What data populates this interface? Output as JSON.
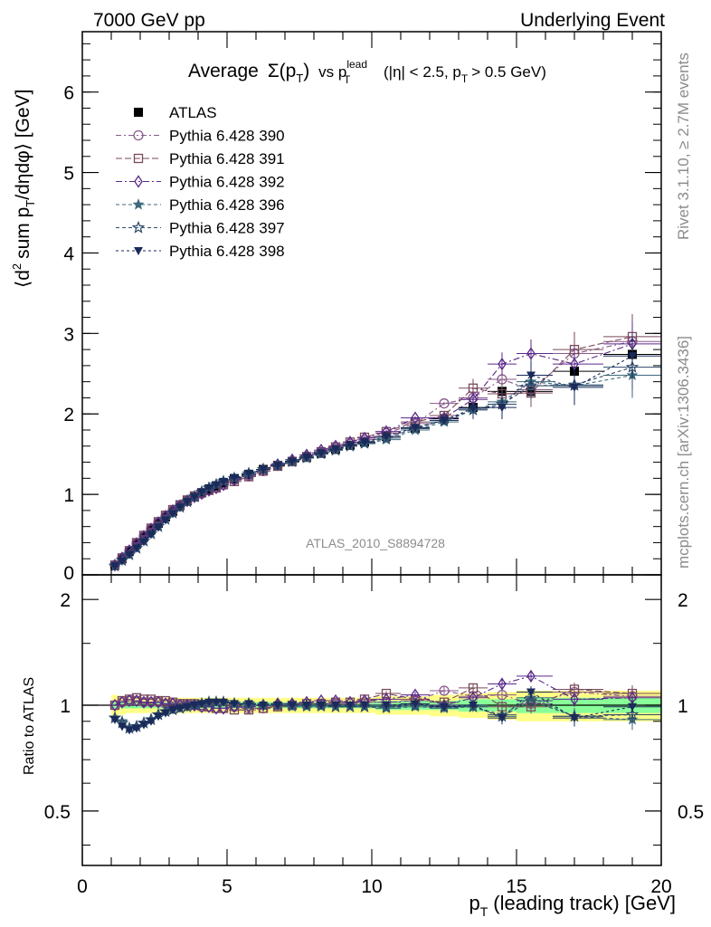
{
  "header": {
    "energy_label": "7000 GeV pp",
    "process_label": "Underlying Event"
  },
  "side_text": {
    "rivet": "Rivet 3.1.10, ≥ 2.7M events",
    "mcplots": "mcplots.cern.ch [arXiv:1306.3436]"
  },
  "colors": {
    "atlas": "#000000",
    "p390": "#8a5a8c",
    "p391": "#7a4a5c",
    "p392": "#5a2a8a",
    "p396": "#3e6a7c",
    "p397": "#2e4a6a",
    "p398": "#1a2a5a",
    "band_outer": "#ffff88",
    "band_inner": "#88ff99"
  },
  "chart_data": [
    {
      "type": "line",
      "title": "Average Σ(p_T) vs p_T^lead (|η| < 2.5, p_T > 0.5 GeV)",
      "title_parts": {
        "main": "Average",
        "sigma": "Σ(p",
        "sub_T": "T",
        "close": ")",
        "vs": "vs p",
        "sup_lead": "lead",
        "cut1": "(|η| < 2.5, p",
        "cut2": "> 0.5 GeV)"
      },
      "ylabel": "⟨d² sum p_T/dηdφ⟩ [GeV]",
      "ylabel_parts": {
        "a": "⟨d",
        "sup2": "2",
        "b": "sum p",
        "subT": "T",
        "c": "/dηdφ⟩ [GeV]"
      },
      "watermark": "ATLAS_2010_S8894728",
      "xlim": [
        0,
        20
      ],
      "ylim": [
        0,
        6.75
      ],
      "yticks": [
        0,
        1,
        2,
        3,
        4,
        5,
        6
      ],
      "legend_position": "top-left",
      "x": [
        1.125,
        1.375,
        1.625,
        1.875,
        2.125,
        2.375,
        2.625,
        2.875,
        3.125,
        3.375,
        3.625,
        3.875,
        4.125,
        4.375,
        4.625,
        4.875,
        5.25,
        5.75,
        6.25,
        6.75,
        7.25,
        7.75,
        8.25,
        8.75,
        9.25,
        9.75,
        10.5,
        11.5,
        12.5,
        13.5,
        14.5,
        15.5,
        17.0,
        19.0
      ],
      "series": [
        {
          "name": "ATLAS",
          "key": "atlas",
          "marker": "square-filled",
          "dash": "",
          "values": [
            0.12,
            0.2,
            0.29,
            0.38,
            0.47,
            0.56,
            0.64,
            0.72,
            0.79,
            0.86,
            0.92,
            0.97,
            1.02,
            1.06,
            1.1,
            1.14,
            1.19,
            1.25,
            1.31,
            1.36,
            1.41,
            1.46,
            1.51,
            1.56,
            1.61,
            1.65,
            1.72,
            1.82,
            1.94,
            2.08,
            2.28,
            2.28,
            2.53,
            2.74
          ]
        },
        {
          "name": "Pythia 6.428 390",
          "key": "p390",
          "marker": "circle-open",
          "dash": "6,3,2,3",
          "values": [
            0.12,
            0.21,
            0.3,
            0.39,
            0.48,
            0.57,
            0.65,
            0.73,
            0.8,
            0.86,
            0.92,
            0.97,
            1.01,
            1.05,
            1.08,
            1.12,
            1.18,
            1.23,
            1.29,
            1.36,
            1.41,
            1.47,
            1.52,
            1.58,
            1.63,
            1.68,
            1.76,
            1.88,
            2.13,
            2.2,
            2.43,
            2.3,
            2.75,
            2.9
          ]
        },
        {
          "name": "Pythia 6.428 391",
          "key": "p391",
          "marker": "square-open",
          "dash": "7,3",
          "values": [
            0.12,
            0.21,
            0.3,
            0.4,
            0.49,
            0.58,
            0.66,
            0.74,
            0.81,
            0.87,
            0.93,
            0.98,
            1.02,
            1.05,
            1.08,
            1.12,
            1.16,
            1.22,
            1.29,
            1.35,
            1.41,
            1.47,
            1.53,
            1.59,
            1.65,
            1.71,
            1.78,
            1.9,
            1.98,
            2.32,
            2.25,
            2.26,
            2.8,
            2.96
          ]
        },
        {
          "name": "Pythia 6.428 392",
          "key": "p392",
          "marker": "diamond-open",
          "dash": "7,3,2,3",
          "values": [
            0.12,
            0.21,
            0.3,
            0.39,
            0.48,
            0.57,
            0.65,
            0.73,
            0.8,
            0.86,
            0.92,
            0.97,
            1.01,
            1.05,
            1.08,
            1.12,
            1.18,
            1.24,
            1.31,
            1.37,
            1.43,
            1.49,
            1.55,
            1.6,
            1.65,
            1.7,
            1.78,
            1.95,
            1.95,
            2.18,
            2.62,
            2.75,
            2.62,
            2.87
          ]
        },
        {
          "name": "Pythia 6.428 396",
          "key": "p396",
          "marker": "star-filled",
          "dash": "4,3",
          "values": [
            0.11,
            0.18,
            0.25,
            0.33,
            0.42,
            0.51,
            0.6,
            0.69,
            0.77,
            0.84,
            0.91,
            0.97,
            1.03,
            1.08,
            1.12,
            1.16,
            1.2,
            1.25,
            1.31,
            1.36,
            1.4,
            1.45,
            1.5,
            1.55,
            1.6,
            1.63,
            1.68,
            1.8,
            1.9,
            2.05,
            2.15,
            2.4,
            2.35,
            2.48
          ]
        },
        {
          "name": "Pythia 6.428 397",
          "key": "p397",
          "marker": "star-open",
          "dash": "4,3",
          "values": [
            0.11,
            0.18,
            0.25,
            0.33,
            0.42,
            0.51,
            0.6,
            0.69,
            0.77,
            0.84,
            0.91,
            0.97,
            1.03,
            1.08,
            1.12,
            1.16,
            1.2,
            1.26,
            1.31,
            1.36,
            1.41,
            1.46,
            1.51,
            1.55,
            1.6,
            1.64,
            1.7,
            1.82,
            1.92,
            2.05,
            2.12,
            2.35,
            2.36,
            2.58
          ]
        },
        {
          "name": "Pythia 6.428 398",
          "key": "p398",
          "marker": "triangle-down-filled",
          "dash": "3,3",
          "values": [
            0.11,
            0.17,
            0.25,
            0.33,
            0.41,
            0.5,
            0.59,
            0.68,
            0.76,
            0.84,
            0.91,
            0.97,
            1.03,
            1.08,
            1.12,
            1.16,
            1.21,
            1.26,
            1.31,
            1.36,
            1.41,
            1.46,
            1.51,
            1.56,
            1.61,
            1.65,
            1.72,
            1.83,
            1.92,
            2.07,
            2.08,
            2.48,
            2.33,
            2.72
          ]
        }
      ]
    },
    {
      "type": "line",
      "ylabel": "Ratio to ATLAS",
      "xlabel": "p_T (leading track) [GeV]",
      "xlabel_parts": {
        "p": "p",
        "subT": "T",
        "rest": "(leading track) [GeV]"
      },
      "xlim": [
        0,
        20
      ],
      "ylim": [
        0.35,
        2.35
      ],
      "xticks": [
        0,
        5,
        10,
        15,
        20
      ],
      "yticks": [
        0.5,
        1,
        2
      ],
      "ytick_labels": [
        "0.5",
        "1",
        "2"
      ],
      "reference": 1,
      "band_outer": [
        0.07,
        0.06,
        0.05,
        0.05,
        0.05,
        0.05,
        0.05,
        0.05,
        0.05,
        0.05,
        0.05,
        0.05,
        0.05,
        0.05,
        0.05,
        0.05,
        0.05,
        0.05,
        0.05,
        0.05,
        0.05,
        0.05,
        0.05,
        0.05,
        0.05,
        0.05,
        0.06,
        0.06,
        0.07,
        0.08,
        0.09,
        0.1,
        0.1,
        0.1
      ],
      "band_inner": [
        0.02,
        0.02,
        0.02,
        0.02,
        0.02,
        0.02,
        0.02,
        0.02,
        0.02,
        0.02,
        0.02,
        0.02,
        0.02,
        0.02,
        0.02,
        0.02,
        0.02,
        0.02,
        0.02,
        0.02,
        0.02,
        0.02,
        0.02,
        0.02,
        0.02,
        0.02,
        0.03,
        0.03,
        0.03,
        0.04,
        0.04,
        0.05,
        0.05,
        0.05
      ],
      "series": [
        {
          "name": "Pythia 6.428 390",
          "key": "p390",
          "marker": "circle-open",
          "dash": "6,3,2,3",
          "values": [
            1.0,
            1.02,
            1.03,
            1.03,
            1.02,
            1.02,
            1.02,
            1.01,
            1.01,
            1.0,
            1.0,
            1.0,
            0.99,
            0.99,
            0.98,
            0.98,
            0.99,
            0.98,
            0.98,
            1.0,
            1.0,
            1.01,
            1.01,
            1.01,
            1.01,
            1.02,
            1.02,
            1.03,
            1.1,
            1.06,
            1.07,
            1.01,
            1.09,
            1.06
          ]
        },
        {
          "name": "Pythia 6.428 391",
          "key": "p391",
          "marker": "square-open",
          "dash": "7,3",
          "values": [
            1.0,
            1.03,
            1.04,
            1.05,
            1.04,
            1.04,
            1.03,
            1.03,
            1.02,
            1.01,
            1.01,
            1.01,
            1.0,
            0.99,
            0.98,
            0.98,
            0.97,
            0.97,
            0.98,
            0.99,
            1.0,
            1.01,
            1.01,
            1.02,
            1.02,
            1.04,
            1.08,
            1.04,
            1.02,
            1.12,
            0.99,
            0.99,
            1.11,
            1.08
          ]
        },
        {
          "name": "Pythia 6.428 392",
          "key": "p392",
          "marker": "diamond-open",
          "dash": "7,3,2,3",
          "values": [
            1.0,
            1.02,
            1.03,
            1.03,
            1.02,
            1.02,
            1.02,
            1.01,
            1.01,
            1.0,
            1.0,
            1.0,
            0.99,
            0.99,
            0.98,
            0.98,
            0.99,
            0.99,
            1.0,
            1.01,
            1.01,
            1.02,
            1.03,
            1.03,
            1.02,
            1.03,
            1.04,
            1.07,
            1.0,
            1.05,
            1.15,
            1.21,
            1.04,
            1.05
          ]
        },
        {
          "name": "Pythia 6.428 396",
          "key": "p396",
          "marker": "star-filled",
          "dash": "4,3",
          "values": [
            0.92,
            0.9,
            0.86,
            0.87,
            0.89,
            0.91,
            0.94,
            0.96,
            0.97,
            0.98,
            0.99,
            1.0,
            1.01,
            1.02,
            1.02,
            1.02,
            1.01,
            1.0,
            1.0,
            1.0,
            0.99,
            0.99,
            0.99,
            0.99,
            0.99,
            0.99,
            0.98,
            0.99,
            0.98,
            0.99,
            0.94,
            1.05,
            0.93,
            0.91
          ]
        },
        {
          "name": "Pythia 6.428 397",
          "key": "p397",
          "marker": "star-open",
          "dash": "4,3",
          "values": [
            0.92,
            0.89,
            0.86,
            0.87,
            0.89,
            0.91,
            0.94,
            0.96,
            0.97,
            0.98,
            0.99,
            1.0,
            1.01,
            1.02,
            1.02,
            1.02,
            1.01,
            1.01,
            1.0,
            1.0,
            1.0,
            1.0,
            1.0,
            0.99,
            0.99,
            0.99,
            0.99,
            1.0,
            0.99,
            0.99,
            0.93,
            1.03,
            0.93,
            0.94
          ]
        },
        {
          "name": "Pythia 6.428 398",
          "key": "p398",
          "marker": "triangle-down-filled",
          "dash": "3,3",
          "values": [
            0.91,
            0.87,
            0.85,
            0.86,
            0.88,
            0.9,
            0.93,
            0.95,
            0.97,
            0.98,
            0.99,
            1.0,
            1.01,
            1.02,
            1.02,
            1.02,
            1.01,
            1.01,
            1.0,
            1.0,
            1.0,
            1.0,
            1.0,
            1.0,
            1.0,
            1.0,
            1.0,
            1.01,
            0.99,
            1.0,
            0.92,
            1.09,
            0.92,
            0.99
          ]
        }
      ]
    }
  ]
}
